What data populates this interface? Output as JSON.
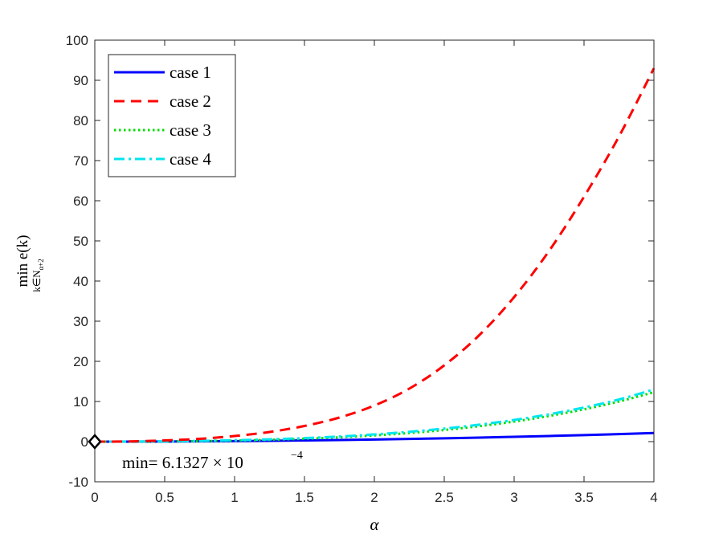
{
  "chart_data": {
    "type": "line",
    "xlabel": "α",
    "ylabel": {
      "main": "min e(k)",
      "subscript": "k∈N",
      "subscript_sub": "α+2"
    },
    "xlim": [
      0,
      4
    ],
    "ylim": [
      -10,
      100
    ],
    "xticks": [
      0,
      0.5,
      1,
      1.5,
      2,
      2.5,
      3,
      3.5,
      4
    ],
    "xtick_labels": [
      "0",
      "0.5",
      "1",
      "1.5",
      "2",
      "2.5",
      "3",
      "3.5",
      "4"
    ],
    "yticks": [
      -10,
      0,
      10,
      20,
      30,
      40,
      50,
      60,
      70,
      80,
      90,
      100
    ],
    "ytick_labels": [
      "-10",
      "0",
      "10",
      "20",
      "30",
      "40",
      "50",
      "60",
      "70",
      "80",
      "90",
      "100"
    ],
    "grid": false,
    "legend_position": "top-left",
    "x": [
      0,
      0.25,
      0.5,
      0.75,
      1,
      1.25,
      1.5,
      1.75,
      2,
      2.25,
      2.5,
      2.75,
      3,
      3.25,
      3.5,
      3.75,
      4
    ],
    "series": [
      {
        "name": "case 1",
        "color": "#0000ff",
        "dash": "solid",
        "values": [
          0.0006,
          0.006,
          0.03,
          0.07,
          0.13,
          0.2,
          0.29,
          0.4,
          0.53,
          0.67,
          0.83,
          1.0,
          1.2,
          1.41,
          1.63,
          1.88,
          2.15
        ]
      },
      {
        "name": "case 2",
        "color": "#ff0000",
        "dash": "dashed",
        "values": [
          0,
          0.05,
          0.3,
          0.7,
          1.4,
          2.4,
          3.9,
          6.0,
          9.0,
          13.2,
          19.0,
          26.5,
          36.0,
          47.5,
          61.0,
          76.0,
          93.0
        ]
      },
      {
        "name": "case 3",
        "color": "#00dd00",
        "dash": "dotted",
        "values": [
          0,
          0.01,
          0.05,
          0.12,
          0.25,
          0.45,
          0.72,
          1.07,
          1.55,
          2.15,
          2.9,
          3.85,
          5.0,
          6.4,
          8.05,
          10.0,
          12.3
        ]
      },
      {
        "name": "case 4",
        "color": "#00e5ee",
        "dash": "dashdot",
        "values": [
          0,
          0.02,
          0.08,
          0.18,
          0.35,
          0.57,
          0.88,
          1.28,
          1.8,
          2.45,
          3.25,
          4.22,
          5.4,
          6.8,
          8.5,
          10.5,
          13.0
        ]
      }
    ],
    "annotations": [
      {
        "marker": "diamond",
        "x": 0,
        "y": 0,
        "text_main": "min= 6.1327 × 10",
        "text_exponent": "−4"
      }
    ]
  }
}
